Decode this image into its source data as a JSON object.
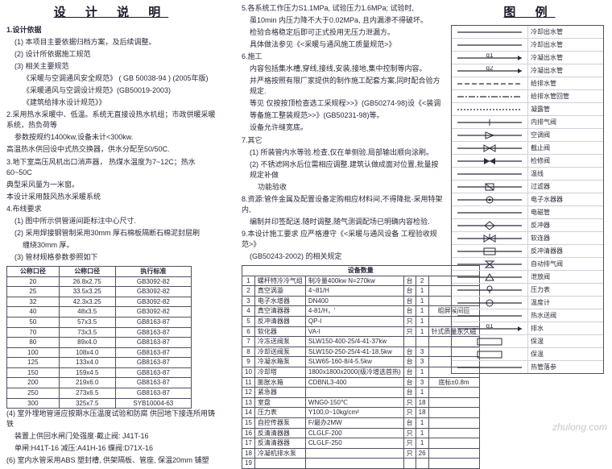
{
  "titles": {
    "left": "设 计 说 明",
    "right": "图  例"
  },
  "col1_lines": [
    {
      "cls": "sect bold",
      "txt": "1.设计依据"
    },
    {
      "cls": "sect ind1",
      "txt": "(1) 本项目主要依据归档方案，及后续调整。"
    },
    {
      "cls": "sect ind1",
      "txt": "(2) 设计所依据施工规范"
    },
    {
      "cls": "sect ind1",
      "txt": "(3) 相关主要规范"
    },
    {
      "cls": "sect ind2",
      "txt": "《采暖与空调通风安全规范》      ( GB 50038-94 ) (2005年版)"
    },
    {
      "cls": "sect ind2",
      "txt": "《采暖通风与空调设计规范》(GB50019-2003)"
    },
    {
      "cls": "sect ind2",
      "txt": "《建筑给排水设计规范》》"
    },
    {
      "cls": "sect",
      "txt": "2.采用热水采暖中、低温。系统无直接设热水机组；市政供暖采暖系统，热负荷等"
    },
    {
      "cls": "sect ind1",
      "txt": "参数按规约1400kw,设备未计<300kw."
    },
    {
      "cls": "sect",
      "txt": "高温热水供回设中式热交换器，供水分配至50/50C."
    },
    {
      "cls": "sect",
      "txt": "3.地下室高压风机出口消声器，    热煤水温度为7~12C；热水60~50C"
    },
    {
      "cls": "sect",
      "txt": "典型采风量为一米窗。"
    },
    {
      "cls": "sect",
      "txt": "本设计采用鼓风热水采暖系统"
    },
    {
      "cls": "sect",
      "txt": "4.布线要求"
    },
    {
      "cls": "sect ind1",
      "txt": "(1) 图中所示供管道间距标注中心尺寸."
    },
    {
      "cls": "sect ind1",
      "txt": "(2) 采用焊接钢管制采用30mm 厚石棉板隔断石棉泥封层刷"
    },
    {
      "cls": "sect ind2",
      "txt": "缠绕30mm 厚。"
    },
    {
      "cls": "sect ind1",
      "txt": "(3) 管材规格参数参照如下"
    }
  ],
  "col1_after": [
    {
      "cls": "sect",
      "txt": "(4) 室外埋地管道应按期水压温度试验和防腐    供回地下接连所用铸铁"
    },
    {
      "cls": "sect ind1",
      "txt": "装置上供回水闸门处强度·截止阀: J41T-16"
    },
    {
      "cls": "sect ind1",
      "txt": "单闸:H41T-16  减压:A41H-16  蝶阀:D71X-16"
    },
    {
      "cls": "sect",
      "txt": "(6) 室内水管采用ABS 塑封槽, 供架隔板、管座, 保温20mm 铺塑"
    }
  ],
  "col2_lines": [
    {
      "cls": "sect",
      "txt": "5.各系统工作压力S1.1MPa, 试验压力1.6MPa; 试验时,"
    },
    {
      "cls": "sect ind1",
      "txt": "虽10min 内压力降不大于0.02MPa, 且内漏渗不得破坏。"
    },
    {
      "cls": "sect ind1",
      "txt": "检验合格稳定后即可正式投用无压力泄漏方。"
    },
    {
      "cls": "sect ind1",
      "txt": "具体做法参见《<采暖与通风施工质量规范>》"
    },
    {
      "cls": "sect",
      "txt": "6.施工"
    },
    {
      "cls": "sect ind1",
      "txt": "内容包括集水槽,穿线,接线,安装,接地,集中控制等内容。"
    },
    {
      "cls": "sect ind1",
      "txt": "并严格按照有限厂家提供的制作施工配套方案,同时配合验方规定."
    },
    {
      "cls": "sect ind1",
      "txt": "等见 仅按按顶检查选工采规程>>》(GB50274-98)设《<装调"
    },
    {
      "cls": "sect ind1",
      "txt": "等备施工整装规范>>》(GB50231-98)等。"
    },
    {
      "cls": "sect ind1",
      "txt": "设备允许缝宽底。"
    },
    {
      "cls": "sect",
      "txt": "7.其它"
    },
    {
      "cls": "sect ind1",
      "txt": "(1) 所装管内水等验.检查,仅在单侧验.局部输出顺向涂刷。"
    },
    {
      "cls": "sect ind1",
      "txt": "(2) 不锈滤网水后位需相应调整.建筑认做成面对位置,批量按规定补做"
    },
    {
      "cls": "sect ind2",
      "txt": "功能验收"
    },
    {
      "cls": "sect",
      "txt": "8.资源:管件金属及配置设备定购相应材料间,不得降批·采用特架内,"
    },
    {
      "cls": "sect ind1",
      "txt": "编制并印签配送.随时调整,随气测调配场已明确内容检验."
    },
    {
      "cls": "sect",
      "txt": "9.本设计施工要求   应严格遵守《<采暖与通风设备         工程验收规范>》"
    },
    {
      "cls": "sect ind1",
      "txt": "(GB50243-2002)    的相关规定"
    }
  ],
  "table1": {
    "headers": [
      "公称口径",
      "公称口径",
      "执行标准"
    ],
    "rows": [
      [
        "20",
        "26.8x2.75",
        "GB3092-82"
      ],
      [
        "25",
        "33.5x3.25",
        "GB3092-82"
      ],
      [
        "32",
        "42.3x3.25",
        "GB3092-82"
      ],
      [
        "40",
        "48x3.5",
        "GB3092-82"
      ],
      [
        "50",
        "57x3.5",
        "GB8163-87"
      ],
      [
        "70",
        "73x3.5",
        "GB8163-87"
      ],
      [
        "80",
        "89x4.0",
        "GB8163-87"
      ],
      [
        "100",
        "108x4.0",
        "GB8163-87"
      ],
      [
        "125",
        "133x4.0",
        "GB8163-87"
      ],
      [
        "150",
        "159x4.5",
        "GB8163-87"
      ],
      [
        "200",
        "219x6.0",
        "GB8163-87"
      ],
      [
        "250",
        "273x6.5",
        "GB8163-87"
      ],
      [
        "300",
        "325x7.5",
        "SYB10004-63"
      ]
    ]
  },
  "table2": {
    "title": "设备数量",
    "rows": [
      [
        "1",
        "螺杆特冷冷气组",
        "制冷量400kw  N=270kw",
        "台",
        "2",
        ""
      ],
      [
        "2",
        "真空涡漩",
        "4~81/H",
        "台",
        "1",
        ""
      ],
      [
        "3",
        "电子水增器",
        "DN400",
        "台",
        "1",
        ""
      ],
      [
        "4",
        "真空清器器",
        "4-81/H，'",
        "台",
        "1",
        "组屏候间匝"
      ],
      [
        "5",
        "反冲清器器",
        "QP-I",
        "只",
        "1",
        ""
      ],
      [
        "6",
        "软化器",
        "VA-I",
        "只",
        "1",
        "针式质量永久磁"
      ],
      [
        "7",
        "冷冻送阀泵",
        "SLW150-400-25/4-41-37kw",
        "",
        "",
        ""
      ],
      [
        "8",
        "冷却送阀泵",
        "SLW150-250-25/4-41-18.5kw",
        "台",
        "3",
        ""
      ],
      [
        "9",
        "冷凝水箱泵",
        "SLW65-160-8/4-5.5kw",
        "台",
        "3",
        ""
      ],
      [
        "10",
        "冷却塔",
        "1800x1800x2000(级冷增选首热)",
        "台",
        "1",
        ""
      ],
      [
        "11",
        "膨胀水箱",
        "CDBNL3-400",
        "台",
        "3",
        "底标±0.8m"
      ],
      [
        "12",
        "紧急器",
        "",
        "台",
        "1",
        ""
      ],
      [
        "13",
        "室盘",
        "WNG0-150℃",
        "只",
        "18",
        ""
      ],
      [
        "14",
        "压力表",
        "Y100,0~10kg/cm²",
        "只",
        "18",
        ""
      ],
      [
        "15",
        "自控传器泵",
        "F/最办2MW",
        "台",
        "1",
        ""
      ],
      [
        "16",
        "反清清器器",
        "CLGLF-200",
        "只",
        "1",
        ""
      ],
      [
        "17",
        "反清清器器",
        "CLGLF-250",
        "只",
        "1",
        ""
      ],
      [
        "18",
        "冷凝机排水泵",
        "",
        "只",
        "26",
        ""
      ],
      [
        "19",
        "",
        "",
        "",
        "",
        ""
      ]
    ]
  },
  "legend": [
    {
      "sym": "line-solid",
      "lbl": "冷却出水管"
    },
    {
      "sym": "line-solid",
      "lbl": "冷却出水管"
    },
    {
      "sym": "q1",
      "lbl": "冷凝出水管"
    },
    {
      "sym": "q2",
      "lbl": "冷凝出水管"
    },
    {
      "sym": "dash",
      "lbl": "给排水管"
    },
    {
      "sym": "dash-dot",
      "lbl": "给排水管回管"
    },
    {
      "sym": "dotted",
      "lbl": "凝露管"
    },
    {
      "sym": "plus",
      "lbl": "内排气阀"
    },
    {
      "sym": "triangle-l",
      "lbl": "空调阀"
    },
    {
      "sym": "bowtie",
      "lbl": "截止阀"
    },
    {
      "sym": "bowtie-dot",
      "lbl": "检修阀"
    },
    {
      "sym": "line-solid",
      "lbl": "温线"
    },
    {
      "sym": "filter",
      "lbl": "过滤器"
    },
    {
      "sym": "swirl",
      "lbl": "电子水器器"
    },
    {
      "sym": "line-solid",
      "lbl": "电磁管"
    },
    {
      "sym": "diamond",
      "lbl": "反冲器"
    },
    {
      "sym": "valve-y",
      "lbl": "软连器"
    },
    {
      "sym": "filter2",
      "lbl": "反冲清器器"
    },
    {
      "sym": "bowtie-h",
      "lbl": "自动排气阀"
    },
    {
      "sym": "valve-d",
      "lbl": "泄放阀"
    },
    {
      "sym": "circle-t",
      "lbl": "压力表"
    },
    {
      "sym": "circle",
      "lbl": "温度计"
    },
    {
      "sym": "line-solid",
      "lbl": "热水送阀"
    },
    {
      "sym": "q1",
      "lbl": "排水"
    },
    {
      "sym": "rect",
      "lbl": "保温"
    },
    {
      "sym": "rect",
      "lbl": "保温"
    },
    {
      "sym": "line-solid",
      "lbl": "热管落参"
    }
  ],
  "watermark": "zhulong.com"
}
